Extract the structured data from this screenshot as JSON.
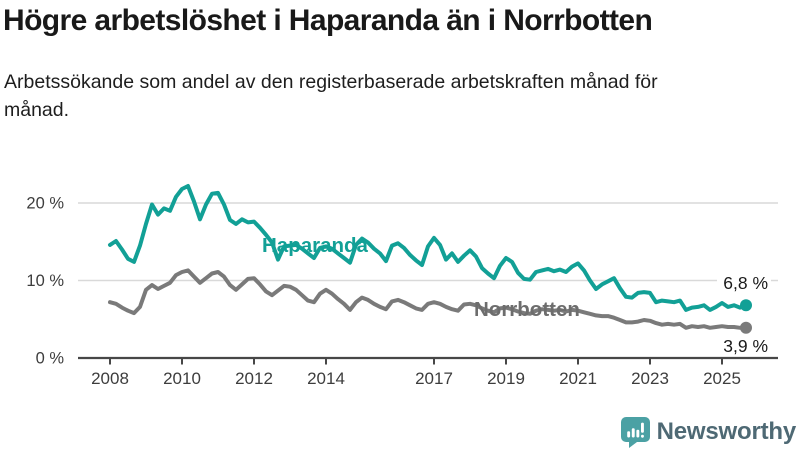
{
  "header": {
    "title": "Högre arbetslöshet i Haparanda än i Norrbotten",
    "subtitle": "Arbetssökande som andel av den registerbaserade arbetskraften månad för månad."
  },
  "chart_data": {
    "type": "line",
    "unit": "%",
    "x_start": {
      "year": 2008,
      "month": 1
    },
    "x_step_months": 2,
    "x_tick_years": [
      2008,
      2010,
      2012,
      2014,
      2017,
      2019,
      2021,
      2023,
      2025
    ],
    "y_ticks": [
      0,
      10,
      20
    ],
    "y_tick_labels": [
      "0 %",
      "10 %",
      "20 %"
    ],
    "ylim": [
      0,
      23
    ],
    "grid": "horizontal-only",
    "legend": "inline-labels",
    "colors": {
      "axis": "#474747",
      "gridline": "#d9d9d9",
      "tick_label": "#3d3d3d",
      "annotation": "#191919"
    },
    "series": [
      {
        "name": "Haparanda",
        "color": "#12a096",
        "label_color": "#12a096",
        "end_value": 6.8,
        "end_label": "6,8 %",
        "values": [
          14.6,
          15.1,
          14.0,
          12.8,
          12.4,
          14.5,
          17.3,
          19.8,
          18.5,
          19.3,
          19.0,
          20.8,
          21.8,
          22.2,
          20.2,
          17.9,
          19.8,
          21.2,
          21.3,
          19.8,
          17.8,
          17.3,
          17.9,
          17.5,
          17.6,
          16.8,
          15.9,
          14.9,
          12.7,
          14.4,
          14.5,
          14.6,
          14.1,
          13.5,
          12.9,
          14.2,
          14.4,
          14.1,
          13.5,
          12.9,
          12.3,
          14.6,
          15.4,
          14.9,
          14.1,
          13.5,
          12.5,
          14.5,
          14.8,
          14.2,
          13.3,
          12.6,
          12.0,
          14.4,
          15.5,
          14.6,
          12.7,
          13.5,
          12.4,
          13.2,
          13.9,
          13.1,
          11.6,
          10.9,
          10.3,
          11.9,
          12.9,
          12.4,
          11.0,
          10.2,
          10.1,
          11.1,
          11.3,
          11.5,
          11.2,
          11.4,
          11.1,
          11.8,
          12.2,
          11.3,
          10.0,
          8.9,
          9.5,
          9.9,
          10.3,
          9.0,
          7.9,
          7.8,
          8.4,
          8.5,
          8.4,
          7.2,
          7.4,
          7.3,
          7.2,
          7.4,
          6.2,
          6.5,
          6.6,
          6.8,
          6.2,
          6.6,
          7.1,
          6.6,
          6.8,
          6.5,
          6.8
        ]
      },
      {
        "name": "Norrbotten",
        "color": "#7a7a7a",
        "label_color": "#6d6d6d",
        "end_value": 3.9,
        "end_label": "3,9 %",
        "values": [
          7.2,
          7.0,
          6.5,
          6.1,
          5.8,
          6.6,
          8.8,
          9.4,
          8.9,
          9.3,
          9.7,
          10.7,
          11.1,
          11.3,
          10.5,
          9.7,
          10.3,
          10.9,
          11.1,
          10.5,
          9.4,
          8.8,
          9.5,
          10.2,
          10.3,
          9.5,
          8.6,
          8.1,
          8.7,
          9.3,
          9.2,
          8.8,
          8.1,
          7.4,
          7.2,
          8.3,
          8.8,
          8.3,
          7.6,
          7.0,
          6.2,
          7.2,
          7.8,
          7.5,
          7.0,
          6.6,
          6.3,
          7.3,
          7.5,
          7.2,
          6.8,
          6.4,
          6.2,
          7.0,
          7.2,
          7.0,
          6.6,
          6.3,
          6.1,
          6.9,
          7.0,
          6.8,
          6.4,
          6.1,
          5.9,
          6.4,
          6.5,
          6.3,
          6.0,
          5.8,
          5.7,
          6.1,
          6.3,
          6.2,
          6.1,
          6.2,
          6.0,
          6.2,
          6.1,
          5.9,
          5.7,
          5.5,
          5.4,
          5.4,
          5.2,
          4.9,
          4.6,
          4.6,
          4.7,
          4.9,
          4.8,
          4.5,
          4.3,
          4.4,
          4.3,
          4.4,
          3.9,
          4.1,
          4.0,
          4.1,
          3.9,
          4.0,
          4.1,
          4.0,
          4.0,
          3.9,
          3.9
        ]
      }
    ]
  },
  "branding": {
    "logo_text": "Newsworthy",
    "logo_icon": "bar-chart-speech-bubble-icon",
    "icon_color": "#4ba1a4",
    "text_color": "#4e6974"
  }
}
